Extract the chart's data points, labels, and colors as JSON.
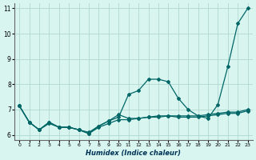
{
  "xlabel": "Humidex (Indice chaleur)",
  "background_color": "#d8f5f0",
  "grid_color": "#b0d8d0",
  "line_color": "#006666",
  "x_values": [
    0,
    1,
    2,
    3,
    4,
    5,
    6,
    7,
    8,
    9,
    10,
    11,
    12,
    13,
    14,
    15,
    16,
    17,
    18,
    19,
    20,
    21,
    22,
    23
  ],
  "series1": [
    7.15,
    6.5,
    6.2,
    6.5,
    6.3,
    6.3,
    6.2,
    6.1,
    6.35,
    6.55,
    6.7,
    7.6,
    7.75,
    8.2,
    8.2,
    8.1,
    7.45,
    7.0,
    6.75,
    6.65,
    7.2,
    8.7,
    10.4,
    11.0
  ],
  "series3": [
    7.15,
    6.5,
    6.2,
    6.5,
    6.3,
    6.3,
    6.2,
    6.05,
    6.35,
    6.55,
    6.8,
    6.65,
    6.65,
    6.7,
    6.7,
    6.75,
    6.75,
    6.75,
    6.75,
    6.8,
    6.85,
    6.9,
    6.9,
    7.0
  ],
  "series4": [
    7.15,
    6.5,
    6.2,
    6.45,
    6.3,
    6.3,
    6.2,
    6.05,
    6.3,
    6.45,
    6.6,
    6.6,
    6.65,
    6.7,
    6.75,
    6.75,
    6.7,
    6.7,
    6.7,
    6.75,
    6.8,
    6.85,
    6.85,
    6.95
  ],
  "xlim": [
    -0.5,
    23.5
  ],
  "ylim": [
    5.8,
    11.2
  ],
  "yticks": [
    6,
    7,
    8,
    9,
    10,
    11
  ],
  "xticks": [
    0,
    1,
    2,
    3,
    4,
    5,
    6,
    7,
    8,
    9,
    10,
    11,
    12,
    13,
    14,
    15,
    16,
    17,
    18,
    19,
    20,
    21,
    22,
    23
  ]
}
